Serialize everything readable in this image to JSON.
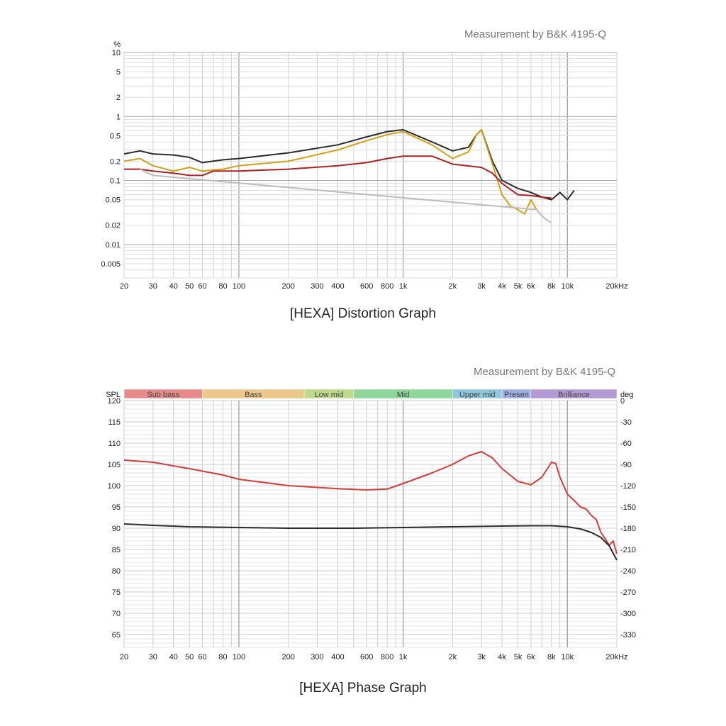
{
  "credits": [
    "Measurement by B&K 4195-Q",
    "Measurement by B&K 4195-Q"
  ],
  "captions": [
    "[HEXA] Distortion Graph",
    "[HEXA] Phase Graph"
  ],
  "chart_data": [
    {
      "type": "line",
      "title": "[HEXA] Distortion Graph",
      "xscale": "log",
      "yscale": "log",
      "xlim": [
        20,
        20000
      ],
      "ylim": [
        0.003,
        10
      ],
      "ylabel": "%",
      "x_ticks": [
        {
          "v": 20,
          "t": "20"
        },
        {
          "v": 30,
          "t": "30"
        },
        {
          "v": 40,
          "t": "40"
        },
        {
          "v": 50,
          "t": "50"
        },
        {
          "v": 60,
          "t": "60"
        },
        {
          "v": 80,
          "t": "80"
        },
        {
          "v": 100,
          "t": "100"
        },
        {
          "v": 200,
          "t": "200"
        },
        {
          "v": 300,
          "t": "300"
        },
        {
          "v": 400,
          "t": "400"
        },
        {
          "v": 600,
          "t": "600"
        },
        {
          "v": 800,
          "t": "800"
        },
        {
          "v": 1000,
          "t": "1k"
        },
        {
          "v": 2000,
          "t": "2k"
        },
        {
          "v": 3000,
          "t": "3k"
        },
        {
          "v": 4000,
          "t": "4k"
        },
        {
          "v": 5000,
          "t": "5k"
        },
        {
          "v": 6000,
          "t": "6k"
        },
        {
          "v": 8000,
          "t": "8k"
        },
        {
          "v": 10000,
          "t": "10k"
        },
        {
          "v": 20000,
          "t": "20kHz"
        }
      ],
      "y_ticks": [
        {
          "v": 10,
          "t": "10"
        },
        {
          "v": 5,
          "t": "5"
        },
        {
          "v": 2,
          "t": "2"
        },
        {
          "v": 1,
          "t": "1"
        },
        {
          "v": 0.5,
          "t": "0.5"
        },
        {
          "v": 0.2,
          "t": "0.2"
        },
        {
          "v": 0.1,
          "t": "0.1"
        },
        {
          "v": 0.05,
          "t": "0.05"
        },
        {
          "v": 0.02,
          "t": "0.02"
        },
        {
          "v": 0.01,
          "t": "0.01"
        },
        {
          "v": 0.005,
          "t": "0.005"
        }
      ],
      "series": [
        {
          "color": "#2b2b2b",
          "x": [
            20,
            25,
            30,
            40,
            50,
            60,
            80,
            100,
            200,
            400,
            600,
            800,
            1000,
            1500,
            2000,
            2500,
            2800,
            3000,
            3500,
            4000,
            5000,
            6000,
            7000,
            8000,
            9000,
            10000,
            11000
          ],
          "y": [
            0.26,
            0.29,
            0.26,
            0.25,
            0.23,
            0.19,
            0.21,
            0.22,
            0.27,
            0.36,
            0.48,
            0.58,
            0.62,
            0.4,
            0.29,
            0.33,
            0.52,
            0.62,
            0.2,
            0.1,
            0.075,
            0.065,
            0.055,
            0.05,
            0.065,
            0.05,
            0.07
          ]
        },
        {
          "color": "#d4a017",
          "x": [
            20,
            25,
            30,
            40,
            50,
            60,
            80,
            100,
            200,
            400,
            600,
            800,
            1000,
            1500,
            2000,
            2500,
            2800,
            3000,
            3500,
            4000,
            4500,
            5000,
            5500,
            6000,
            6500
          ],
          "y": [
            0.2,
            0.22,
            0.17,
            0.14,
            0.16,
            0.14,
            0.15,
            0.17,
            0.2,
            0.3,
            0.42,
            0.52,
            0.58,
            0.36,
            0.22,
            0.28,
            0.52,
            0.62,
            0.18,
            0.06,
            0.04,
            0.035,
            0.03,
            0.05,
            0.035
          ]
        },
        {
          "color": "#b02020",
          "x": [
            20,
            25,
            30,
            40,
            50,
            60,
            70,
            80,
            100,
            200,
            400,
            600,
            800,
            1000,
            1500,
            2000,
            3000,
            3500,
            4000,
            5000,
            6000,
            7000,
            8000
          ],
          "y": [
            0.15,
            0.15,
            0.14,
            0.13,
            0.12,
            0.12,
            0.14,
            0.14,
            0.14,
            0.15,
            0.17,
            0.19,
            0.22,
            0.24,
            0.24,
            0.18,
            0.16,
            0.13,
            0.09,
            0.06,
            0.058,
            0.055,
            0.053
          ]
        },
        {
          "color": "#bbbbbb",
          "x": [
            25,
            28,
            30,
            6500,
            7000,
            7500,
            8000
          ],
          "y": [
            0.15,
            0.13,
            0.12,
            0.035,
            0.028,
            0.024,
            0.022
          ]
        }
      ]
    },
    {
      "type": "line",
      "title": "[HEXA] Phase Graph",
      "xscale": "log",
      "xlim": [
        20,
        20000
      ],
      "ylabel": "SPL",
      "y2label": "deg",
      "ylim": [
        62,
        120
      ],
      "y2lim": [
        -348,
        0
      ],
      "bands": [
        {
          "name": "Sub bass",
          "from": 20,
          "to": 60,
          "color": "#e88a8a"
        },
        {
          "name": "Bass",
          "from": 60,
          "to": 250,
          "color": "#ecc98a"
        },
        {
          "name": "Low mid",
          "from": 250,
          "to": 500,
          "color": "#bfd98a"
        },
        {
          "name": "Mid",
          "from": 500,
          "to": 2000,
          "color": "#8fd69a"
        },
        {
          "name": "Upper mid",
          "from": 2000,
          "to": 4000,
          "color": "#8fc8dd"
        },
        {
          "name": "Presen",
          "from": 4000,
          "to": 6000,
          "color": "#9db0e6"
        },
        {
          "name": "Brilliance",
          "from": 6000,
          "to": 20000,
          "color": "#b39ad4"
        }
      ],
      "x_ticks": [
        {
          "v": 20,
          "t": "20"
        },
        {
          "v": 30,
          "t": "30"
        },
        {
          "v": 40,
          "t": "40"
        },
        {
          "v": 50,
          "t": "50"
        },
        {
          "v": 60,
          "t": "60"
        },
        {
          "v": 80,
          "t": "80"
        },
        {
          "v": 100,
          "t": "100"
        },
        {
          "v": 200,
          "t": "200"
        },
        {
          "v": 300,
          "t": "300"
        },
        {
          "v": 400,
          "t": "400"
        },
        {
          "v": 600,
          "t": "600"
        },
        {
          "v": 800,
          "t": "800"
        },
        {
          "v": 1000,
          "t": "1k"
        },
        {
          "v": 2000,
          "t": "2k"
        },
        {
          "v": 3000,
          "t": "3k"
        },
        {
          "v": 4000,
          "t": "4k"
        },
        {
          "v": 5000,
          "t": "5k"
        },
        {
          "v": 6000,
          "t": "6k"
        },
        {
          "v": 8000,
          "t": "8k"
        },
        {
          "v": 10000,
          "t": "10k"
        },
        {
          "v": 20000,
          "t": "20kHz"
        }
      ],
      "y_ticks": [
        120,
        115,
        110,
        105,
        100,
        95,
        90,
        85,
        80,
        75,
        70,
        65
      ],
      "y2_ticks": [
        0,
        -30,
        -60,
        -90,
        -120,
        -150,
        -180,
        -210,
        -240,
        -270,
        -300,
        -330
      ],
      "series": [
        {
          "name": "SPL",
          "color": "#d93a3a",
          "x": [
            20,
            30,
            50,
            80,
            100,
            200,
            400,
            600,
            800,
            1000,
            1500,
            2000,
            2500,
            3000,
            3500,
            4000,
            5000,
            6000,
            7000,
            8000,
            8500,
            9000,
            10000,
            11000,
            12000,
            13000,
            14000,
            15000,
            16000,
            17000,
            18000,
            19000,
            20000
          ],
          "y": [
            106,
            105.5,
            104,
            102.5,
            101.5,
            100,
            99.3,
            99,
            99.2,
            100.5,
            103,
            105,
            107,
            108,
            106.5,
            104,
            101,
            100.2,
            102,
            105.5,
            105.2,
            102,
            98,
            96.5,
            95,
            94.5,
            93,
            92,
            89,
            87.5,
            86,
            87,
            84
          ]
        },
        {
          "name": "Phase",
          "color": "#2b2b2b",
          "x": [
            20,
            30,
            50,
            100,
            200,
            500,
            1000,
            2000,
            4000,
            6000,
            8000,
            10000,
            12000,
            14000,
            16000,
            18000,
            20000
          ],
          "y": [
            -174,
            -176,
            -178,
            -179,
            -180,
            -180,
            -179,
            -178,
            -177,
            -176.5,
            -176.5,
            -178,
            -181,
            -186,
            -193,
            -205,
            -225
          ]
        }
      ]
    }
  ]
}
